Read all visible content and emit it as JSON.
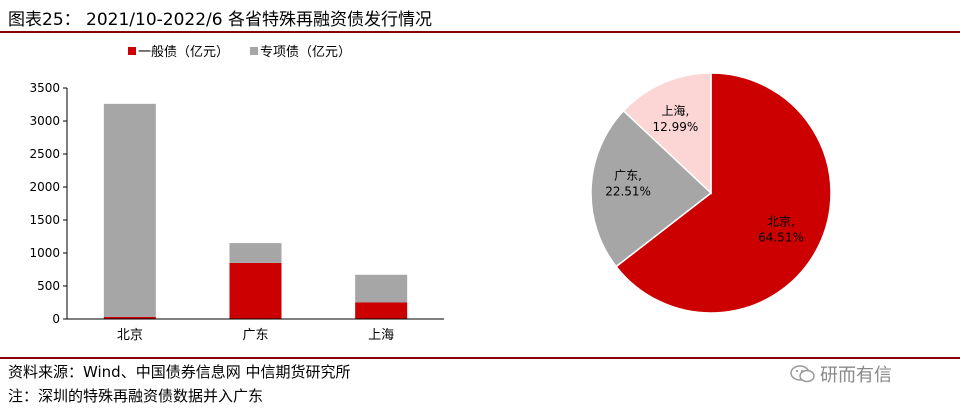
{
  "title": "图表25： 2021/10-2022/6 各省特殊再融资债发行情况",
  "source": "资料来源：Wind、中国债券信息网 中信期货研究所",
  "note": "注：深圳的特殊再融资债数据并入广东",
  "watermark": "研而有信",
  "chart_data": [
    {
      "type": "bar",
      "stacked": true,
      "categories": [
        "北京",
        "广东",
        "上海"
      ],
      "series": [
        {
          "name": "一般债（亿元）",
          "values": [
            30,
            850,
            250
          ],
          "color": "#cc0000"
        },
        {
          "name": "专项债（亿元）",
          "values": [
            3230,
            300,
            420
          ],
          "color": "#a6a6a6"
        }
      ],
      "ylim": [
        0,
        3500
      ],
      "yticks": [
        0,
        500,
        1000,
        1500,
        2000,
        2500,
        3000,
        3500
      ],
      "legend": "top"
    },
    {
      "type": "pie",
      "labels": [
        "北京,",
        "广东,",
        "上海,"
      ],
      "values": [
        64.51,
        22.51,
        12.99
      ],
      "value_labels": [
        "64.51%",
        "22.51%",
        "12.99%"
      ],
      "colors": [
        "#cc0000",
        "#a6a6a6",
        "#fcd5d5"
      ]
    }
  ]
}
